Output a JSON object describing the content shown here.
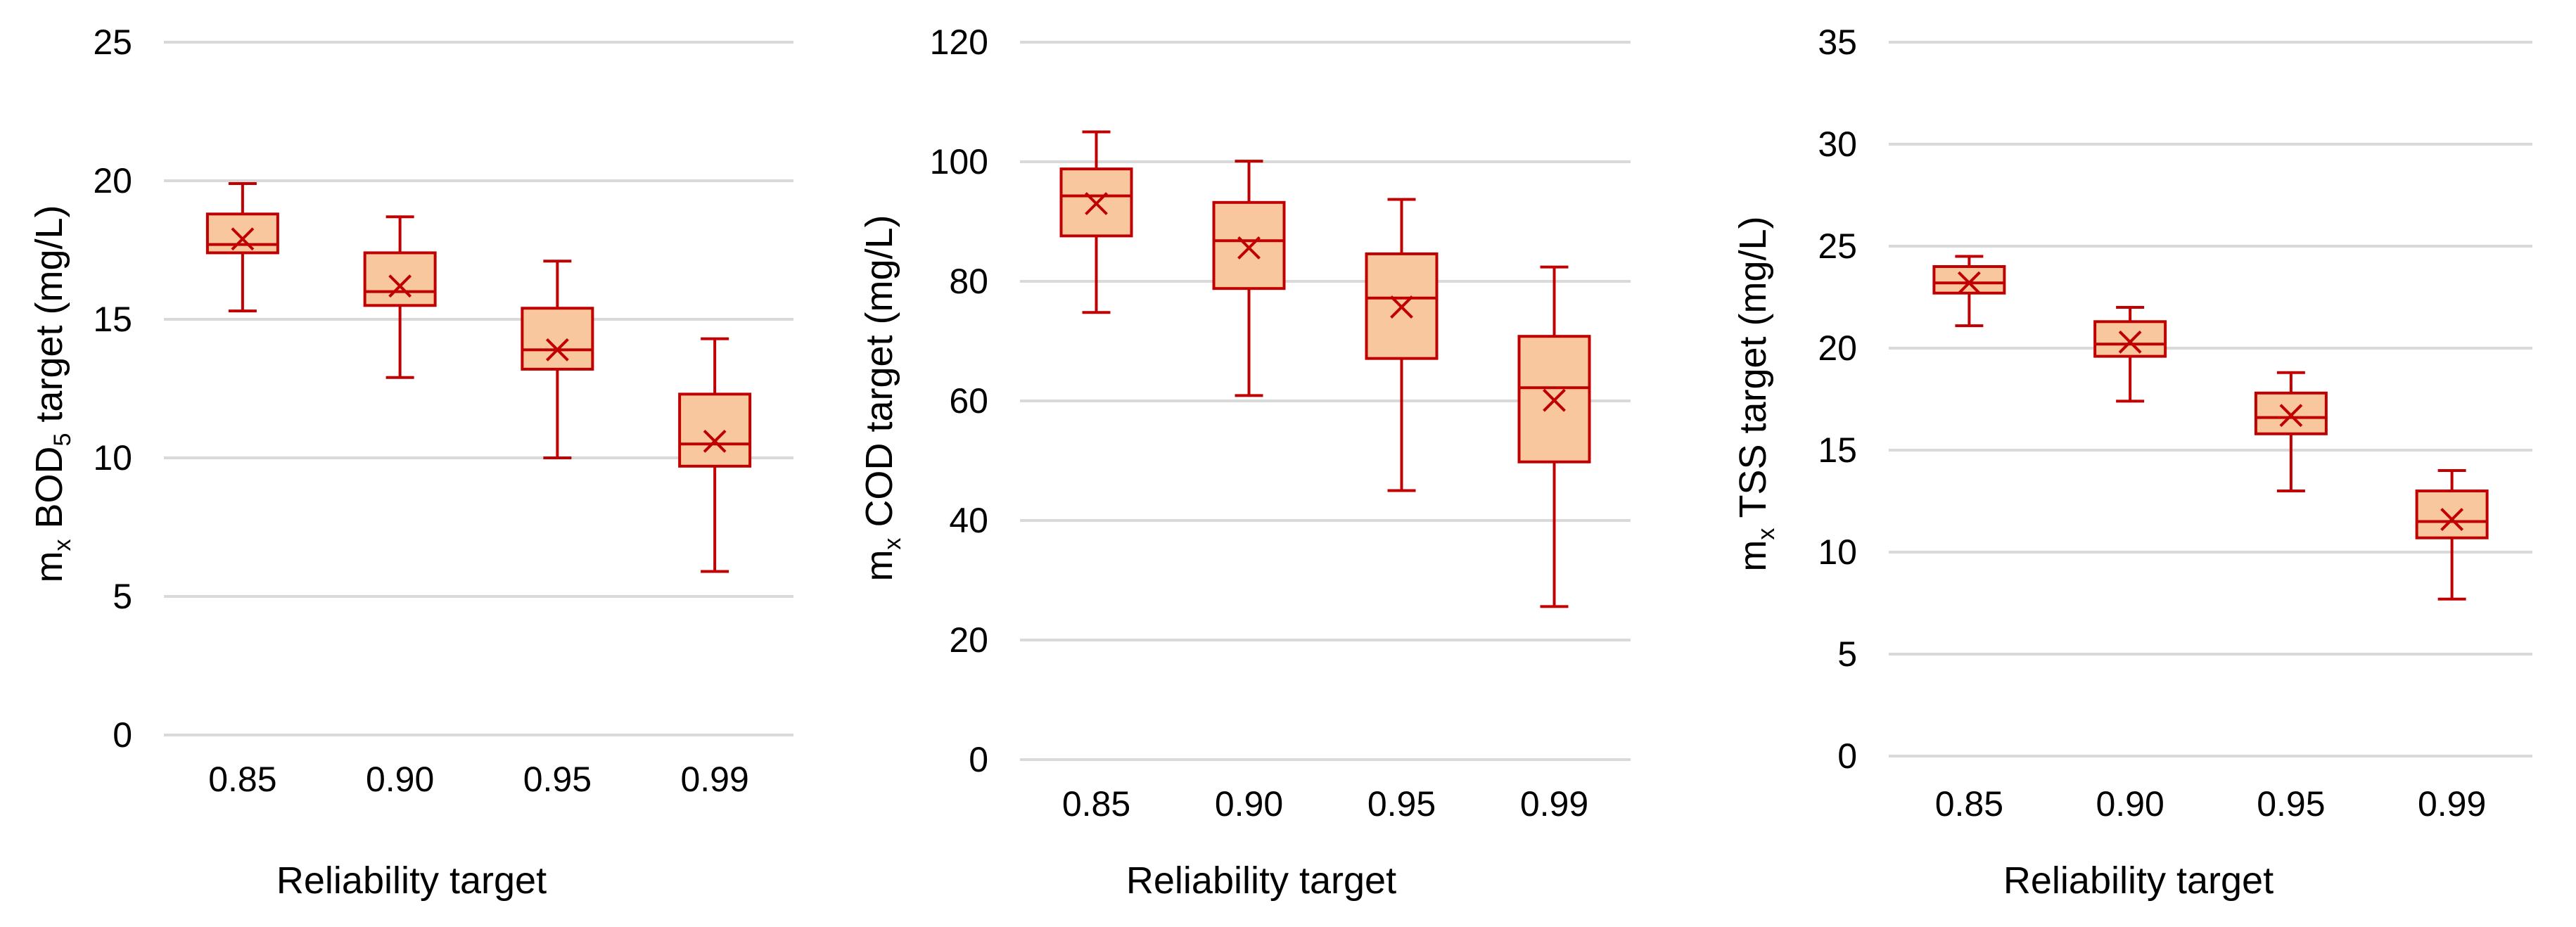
{
  "chart_data": [
    {
      "type": "boxplot",
      "ylabel": "m",
      "ylabel_sub_x": "x",
      "ylabel_mid": " BOD",
      "ylabel_sub_5": "5",
      "ylabel_tail": " target (mg/L)",
      "xlabel": "Reliability target",
      "categories": [
        "0.85",
        "0.90",
        "0.95",
        "0.99"
      ],
      "ylim": [
        0,
        25
      ],
      "yticks": [
        "0",
        "5",
        "10",
        "15",
        "20",
        "25"
      ],
      "boxes": [
        {
          "category": "0.85",
          "min": 15.3,
          "q1": 17.4,
          "median": 17.7,
          "q3": 18.8,
          "max": 19.9,
          "mean": 17.9
        },
        {
          "category": "0.90",
          "min": 12.9,
          "q1": 15.5,
          "median": 16.0,
          "q3": 17.4,
          "max": 18.7,
          "mean": 16.2
        },
        {
          "category": "0.95",
          "min": 10.0,
          "q1": 13.2,
          "median": 13.9,
          "q3": 15.4,
          "max": 17.1,
          "mean": 13.9
        },
        {
          "category": "0.99",
          "min": 5.9,
          "q1": 9.7,
          "median": 10.5,
          "q3": 12.3,
          "max": 14.3,
          "mean": 10.6
        }
      ]
    },
    {
      "type": "boxplot",
      "ylabel": "m",
      "ylabel_sub_x": "x",
      "ylabel_tail": " COD target (mg/L)",
      "xlabel": "Reliability target",
      "categories": [
        "0.85",
        "0.90",
        "0.95",
        "0.99"
      ],
      "ylim": [
        0,
        120
      ],
      "yticks": [
        "0",
        "20",
        "40",
        "60",
        "80",
        "100",
        "120"
      ],
      "boxes": [
        {
          "category": "0.85",
          "min": 74.8,
          "q1": 87.6,
          "median": 94.3,
          "q3": 98.8,
          "max": 105.0,
          "mean": 93.0
        },
        {
          "category": "0.90",
          "min": 60.9,
          "q1": 78.8,
          "median": 86.8,
          "q3": 93.2,
          "max": 100.1,
          "mean": 85.6
        },
        {
          "category": "0.95",
          "min": 45.0,
          "q1": 67.1,
          "median": 77.2,
          "q3": 84.6,
          "max": 93.7,
          "mean": 75.7
        },
        {
          "category": "0.99",
          "min": 25.6,
          "q1": 49.8,
          "median": 62.2,
          "q3": 70.8,
          "max": 82.4,
          "mean": 60.1
        }
      ]
    },
    {
      "type": "boxplot",
      "ylabel": "m",
      "ylabel_sub_x": "x",
      "ylabel_tail": " TSS target (mg/L)",
      "xlabel": "Reliability target",
      "categories": [
        "0.85",
        "0.90",
        "0.95",
        "0.99"
      ],
      "ylim": [
        0,
        35
      ],
      "yticks": [
        "0",
        "5",
        "10",
        "15",
        "20",
        "25",
        "30",
        "35"
      ],
      "boxes": [
        {
          "category": "0.85",
          "min": 21.1,
          "q1": 22.7,
          "median": 23.2,
          "q3": 24.0,
          "max": 24.5,
          "mean": 23.2
        },
        {
          "category": "0.90",
          "min": 17.4,
          "q1": 19.6,
          "median": 20.2,
          "q3": 21.3,
          "max": 22.0,
          "mean": 20.3
        },
        {
          "category": "0.95",
          "min": 13.0,
          "q1": 15.8,
          "median": 16.6,
          "q3": 17.8,
          "max": 18.8,
          "mean": 16.7
        },
        {
          "category": "0.99",
          "min": 7.7,
          "q1": 10.7,
          "median": 11.5,
          "q3": 13.0,
          "max": 14.0,
          "mean": 11.6
        }
      ]
    }
  ],
  "colors": {
    "box_fill": "#f8c79e",
    "box_stroke": "#c00000",
    "grid": "#d9d9d9",
    "text": "#000000"
  }
}
